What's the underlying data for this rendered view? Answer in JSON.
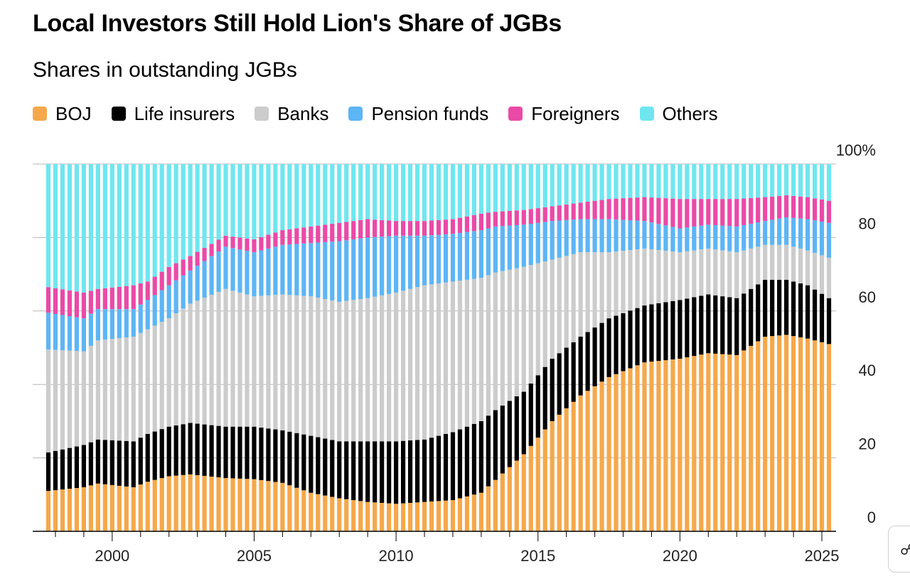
{
  "chart_data": {
    "type": "stacked-bar",
    "title": "Local Investors Still Hold Lion's Share of JGBs",
    "subtitle": "Shares in outstanding JGBs",
    "x_unit": "year (quarterly bars)",
    "x_range": [
      1997.5,
      2025.5
    ],
    "x_ticks": [
      "2000",
      "2005",
      "2010",
      "2015",
      "2020",
      "2025"
    ],
    "y_range": [
      0,
      100
    ],
    "y_ticks": [
      "0",
      "20",
      "40",
      "60",
      "80",
      "100%"
    ],
    "series_order": [
      "BOJ",
      "Life insurers",
      "Banks",
      "Pension funds",
      "Foreigners",
      "Others"
    ],
    "colors": {
      "BOJ": "#f5a84b",
      "Life insurers": "#000000",
      "Banks": "#cccccc",
      "Pension funds": "#5db5f5",
      "Foreigners": "#ea4aa6",
      "Others": "#6fe6ef"
    },
    "cumulative_anchors": [
      {
        "x": 1997.75,
        "BOJ": 11,
        "Life insurers": 21.5,
        "Banks": 49.5,
        "Pension funds": 59.5,
        "Foreigners": 66.5
      },
      {
        "x": 1999.0,
        "BOJ": 12,
        "Life insurers": 23.5,
        "Banks": 49,
        "Pension funds": 58,
        "Foreigners": 65
      },
      {
        "x": 1999.5,
        "BOJ": 13,
        "Life insurers": 25,
        "Banks": 52,
        "Pension funds": 60.5,
        "Foreigners": 66
      },
      {
        "x": 2000.75,
        "BOJ": 12,
        "Life insurers": 24.5,
        "Banks": 53,
        "Pension funds": 60.5,
        "Foreigners": 67
      },
      {
        "x": 2001.25,
        "BOJ": 13.5,
        "Life insurers": 26.5,
        "Banks": 55,
        "Pension funds": 63,
        "Foreigners": 68
      },
      {
        "x": 2002.0,
        "BOJ": 15,
        "Life insurers": 28.5,
        "Banks": 58,
        "Pension funds": 67,
        "Foreigners": 72
      },
      {
        "x": 2002.75,
        "BOJ": 15.5,
        "Life insurers": 29.5,
        "Banks": 62,
        "Pension funds": 71,
        "Foreigners": 75
      },
      {
        "x": 2004.0,
        "BOJ": 14.5,
        "Life insurers": 28.5,
        "Banks": 66,
        "Pension funds": 77.5,
        "Foreigners": 80.5
      },
      {
        "x": 2005.0,
        "BOJ": 14.2,
        "Life insurers": 28.5,
        "Banks": 64,
        "Pension funds": 76,
        "Foreigners": 79.5
      },
      {
        "x": 2006.0,
        "BOJ": 13.2,
        "Life insurers": 27.5,
        "Banks": 64.5,
        "Pension funds": 78,
        "Foreigners": 82
      },
      {
        "x": 2007.0,
        "BOJ": 10.5,
        "Life insurers": 26,
        "Banks": 64,
        "Pension funds": 78.5,
        "Foreigners": 83
      },
      {
        "x": 2008.0,
        "BOJ": 9,
        "Life insurers": 24.5,
        "Banks": 62.5,
        "Pension funds": 79,
        "Foreigners": 84
      },
      {
        "x": 2009.0,
        "BOJ": 8,
        "Life insurers": 24.5,
        "Banks": 63.5,
        "Pension funds": 80,
        "Foreigners": 85
      },
      {
        "x": 2010.0,
        "BOJ": 7.5,
        "Life insurers": 24.5,
        "Banks": 65,
        "Pension funds": 80.5,
        "Foreigners": 84.5
      },
      {
        "x": 2011.0,
        "BOJ": 8,
        "Life insurers": 25,
        "Banks": 67,
        "Pension funds": 80.5,
        "Foreigners": 84.5
      },
      {
        "x": 2012.0,
        "BOJ": 8.5,
        "Life insurers": 27,
        "Banks": 68,
        "Pension funds": 81,
        "Foreigners": 85
      },
      {
        "x": 2013.0,
        "BOJ": 10.5,
        "Life insurers": 30,
        "Banks": 69,
        "Pension funds": 82,
        "Foreigners": 86.5
      },
      {
        "x": 2013.5,
        "BOJ": 14,
        "Life insurers": 33,
        "Banks": 70.5,
        "Pension funds": 83,
        "Foreigners": 87
      },
      {
        "x": 2014.5,
        "BOJ": 21,
        "Life insurers": 38,
        "Banks": 72,
        "Pension funds": 83.5,
        "Foreigners": 87.5
      },
      {
        "x": 2015.5,
        "BOJ": 30,
        "Life insurers": 47,
        "Banks": 74,
        "Pension funds": 84.5,
        "Foreigners": 88.5
      },
      {
        "x": 2016.5,
        "BOJ": 37,
        "Life insurers": 53,
        "Banks": 76,
        "Pension funds": 85,
        "Foreigners": 89.5
      },
      {
        "x": 2017.5,
        "BOJ": 42,
        "Life insurers": 58,
        "Banks": 76,
        "Pension funds": 85,
        "Foreigners": 90.5
      },
      {
        "x": 2018.75,
        "BOJ": 46,
        "Life insurers": 61.5,
        "Banks": 77,
        "Pension funds": 84.5,
        "Foreigners": 91
      },
      {
        "x": 2020.0,
        "BOJ": 47,
        "Life insurers": 63,
        "Banks": 76,
        "Pension funds": 82.5,
        "Foreigners": 90.5
      },
      {
        "x": 2021.0,
        "BOJ": 48.5,
        "Life insurers": 64.5,
        "Banks": 77,
        "Pension funds": 83.5,
        "Foreigners": 90.5
      },
      {
        "x": 2022.0,
        "BOJ": 48,
        "Life insurers": 63.5,
        "Banks": 76,
        "Pension funds": 83,
        "Foreigners": 90.5
      },
      {
        "x": 2023.0,
        "BOJ": 53,
        "Life insurers": 68.5,
        "Banks": 78,
        "Pension funds": 84.5,
        "Foreigners": 91
      },
      {
        "x": 2023.75,
        "BOJ": 53.5,
        "Life insurers": 68.5,
        "Banks": 78,
        "Pension funds": 85.5,
        "Foreigners": 91.5
      },
      {
        "x": 2024.5,
        "BOJ": 52.5,
        "Life insurers": 67,
        "Banks": 76.5,
        "Pension funds": 85,
        "Foreigners": 91
      },
      {
        "x": 2025.25,
        "BOJ": 51,
        "Life insurers": 63.5,
        "Banks": 74.5,
        "Pension funds": 84,
        "Foreigners": 90
      }
    ]
  }
}
